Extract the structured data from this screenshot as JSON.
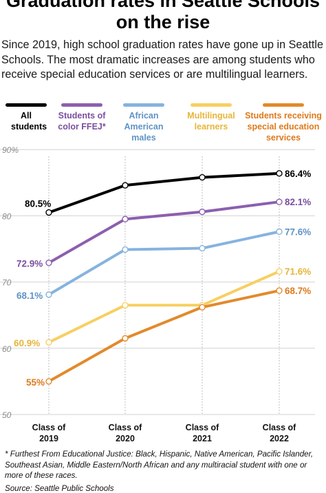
{
  "title": "Graduation rates in Seattle Schools on the rise",
  "subtitle": "Since 2019, high school graduation rates have gone up in Seattle Schools. The most dramatic increases are among students who receive special education services or are multilingual learners.",
  "footnote": "* Furthest From Educational Justice: Black, Hispanic, Native American, Pacific Islander, Southeast Asian, Middle Eastern/North African and any multiracial student with one or more of these races.",
  "source": "Source: Seattle Public Schools",
  "colors": {
    "all": "#000000",
    "color": "#8c5fae",
    "aam": "#86b3df",
    "ml": "#f7cf62",
    "sped": "#e28a2b"
  },
  "legend": [
    {
      "key": "all",
      "label": "All students",
      "text_color": "#000000"
    },
    {
      "key": "color",
      "label": "Students of color FFEJ*",
      "text_color": "#7a4fa0"
    },
    {
      "key": "aam",
      "label": "African American males",
      "text_color": "#5f93c6"
    },
    {
      "key": "ml",
      "label": "Multilingual learners",
      "text_color": "#e7b53a"
    },
    {
      "key": "sped",
      "label": "Students receiving special education services",
      "text_color": "#dd7a1c"
    }
  ],
  "chart_data": {
    "type": "line",
    "categories": [
      "Class of 2019",
      "Class of 2020",
      "Class of 2021",
      "Class of 2022"
    ],
    "y_ticks": [
      "90%",
      "80",
      "70",
      "60",
      "50"
    ],
    "ylim": [
      50,
      90
    ],
    "grid": true,
    "series": [
      {
        "key": "all",
        "name": "All students",
        "values": [
          80.5,
          84.6,
          85.8,
          86.4
        ],
        "start_label": "80.5%",
        "end_label": "86.4%"
      },
      {
        "key": "color",
        "name": "Students of color FFEJ*",
        "values": [
          72.9,
          79.5,
          80.6,
          82.1
        ],
        "start_label": "72.9%",
        "end_label": "82.1%"
      },
      {
        "key": "aam",
        "name": "African American males",
        "values": [
          68.1,
          74.9,
          75.1,
          77.6
        ],
        "start_label": "68.1%",
        "end_label": "77.6%"
      },
      {
        "key": "ml",
        "name": "Multilingual learners",
        "values": [
          60.9,
          66.5,
          66.5,
          71.6
        ],
        "start_label": "60.9%",
        "end_label": "71.6%"
      },
      {
        "key": "sped",
        "name": "Students receiving special education services",
        "values": [
          55.0,
          61.5,
          66.2,
          68.7
        ],
        "start_label": "55%",
        "end_label": "68.7%"
      }
    ]
  }
}
